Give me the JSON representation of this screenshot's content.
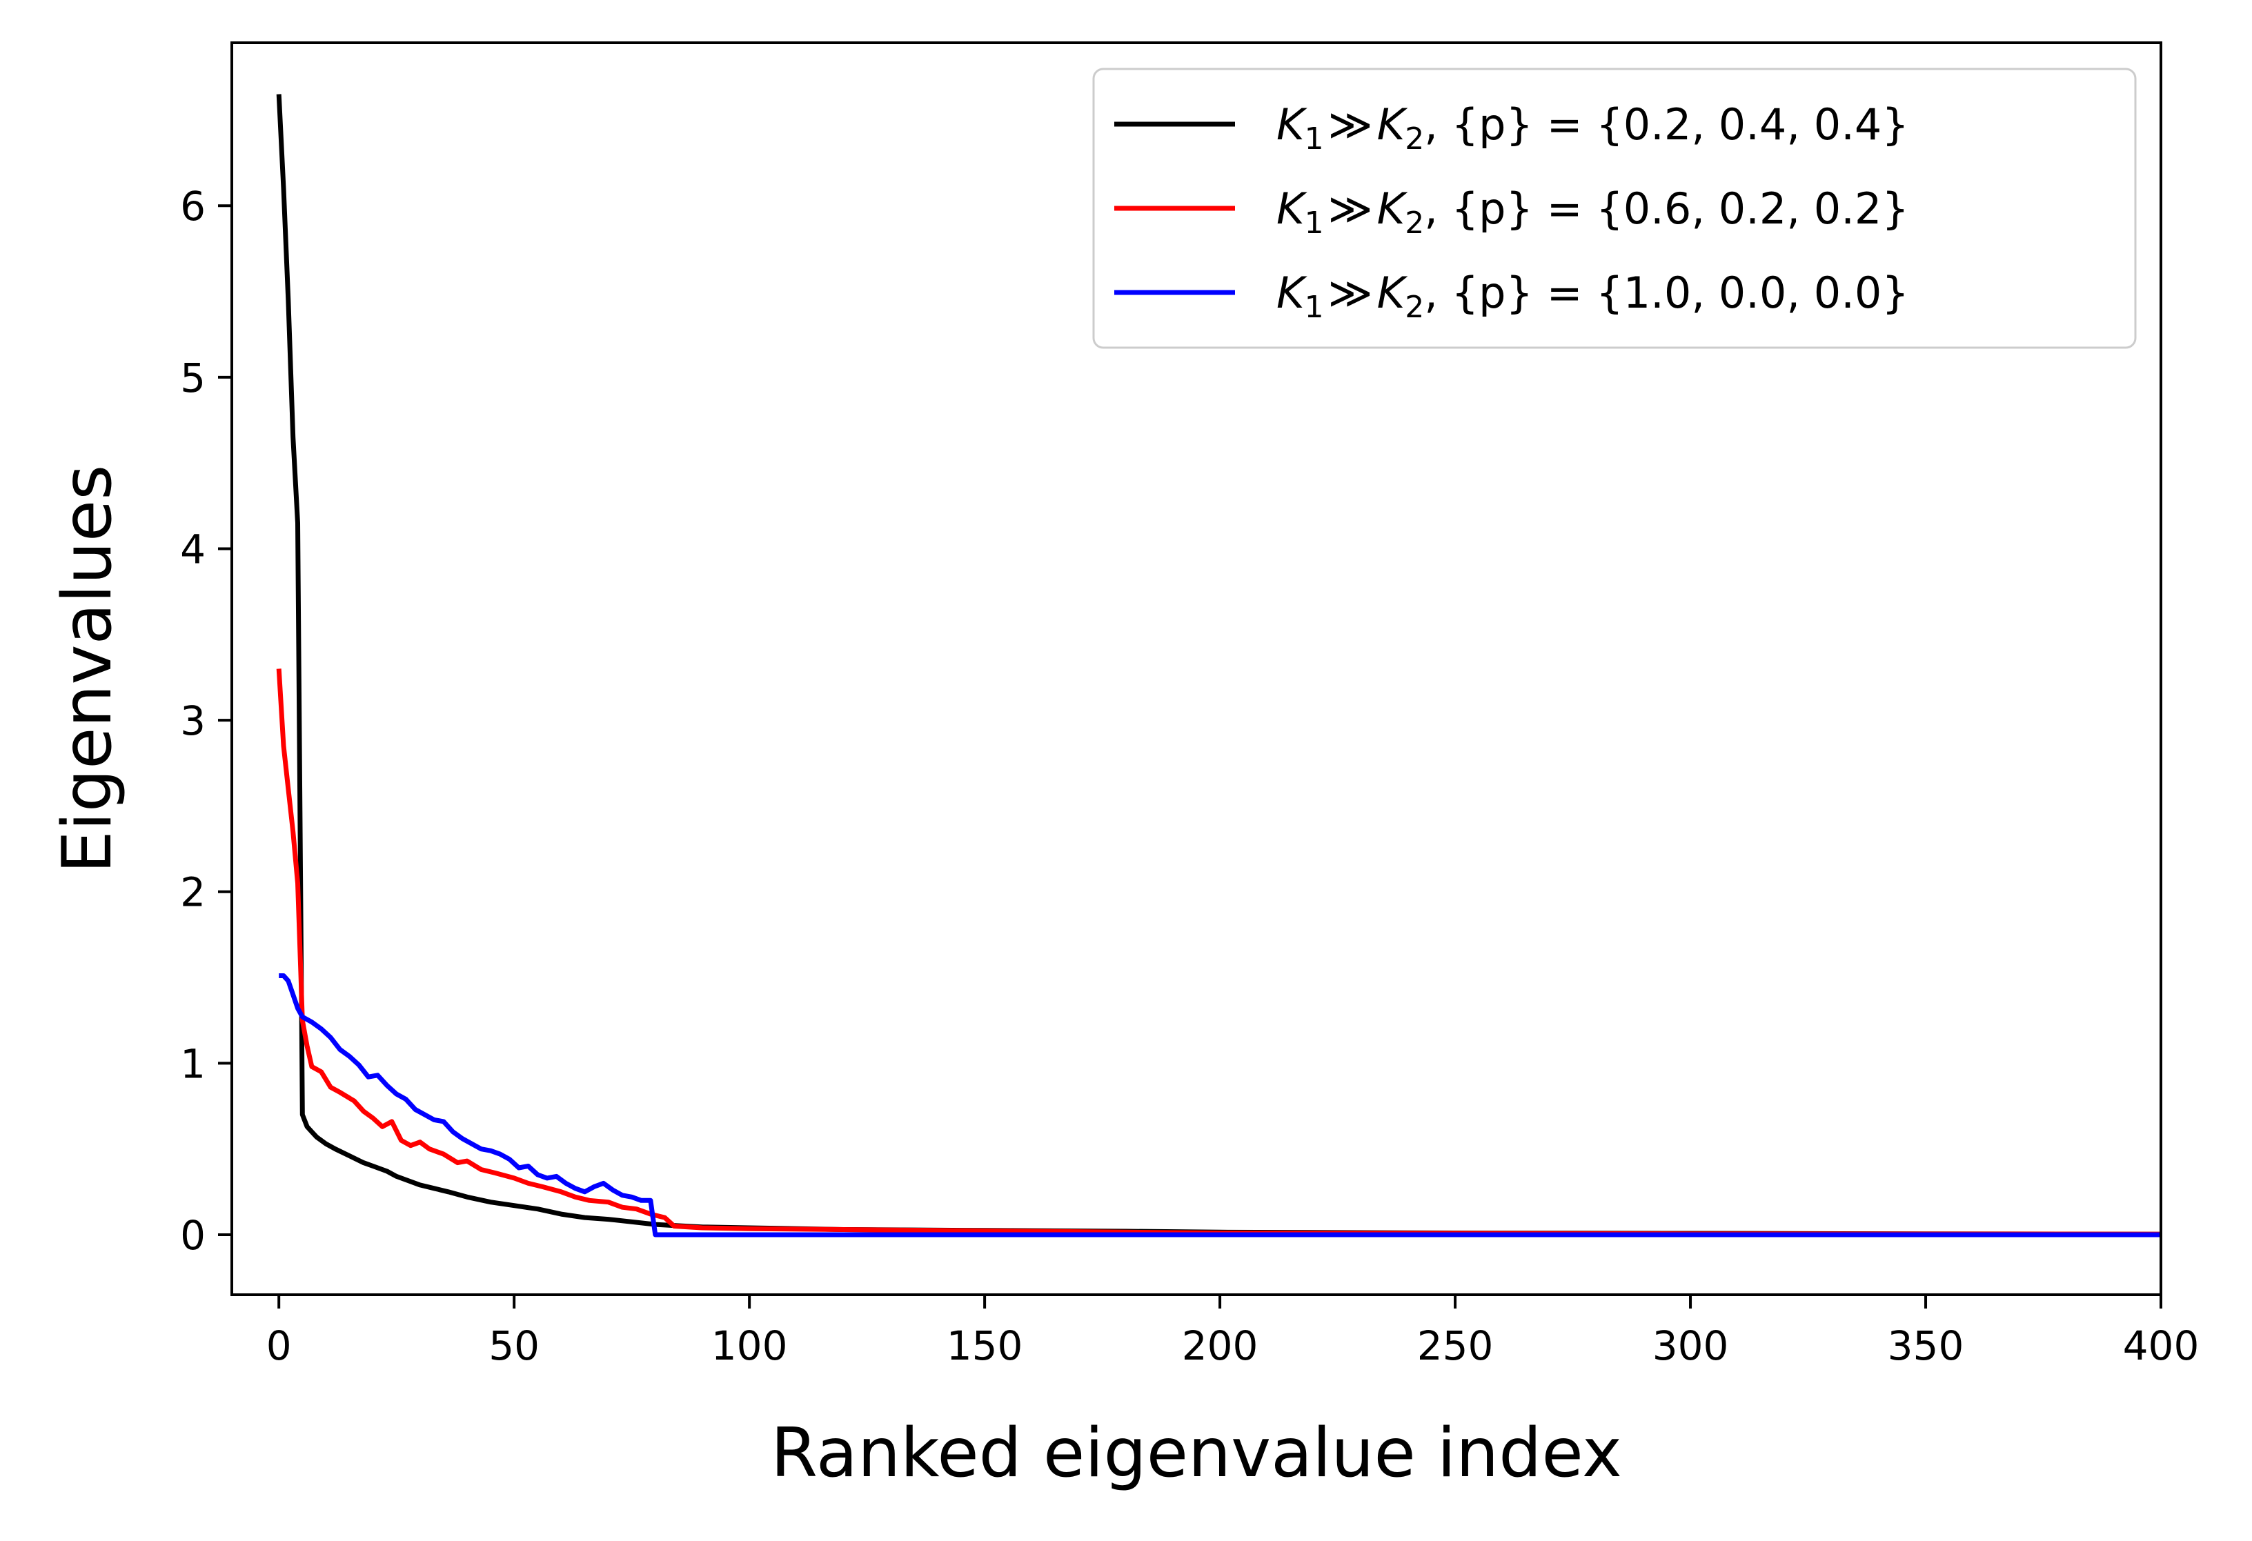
{
  "chart_data": {
    "type": "line",
    "xlabel": "Ranked eigenvalue index",
    "ylabel": "Eigenvalues",
    "xlim": [
      -10,
      400
    ],
    "ylim": [
      -0.35,
      6.95
    ],
    "xticks": [
      0,
      50,
      100,
      150,
      200,
      250,
      300,
      350,
      400
    ],
    "yticks": [
      0,
      1,
      2,
      3,
      4,
      5,
      6
    ],
    "legend_position": "top-right",
    "grid": false,
    "series": [
      {
        "name": "K1 ≫ K2, {p} = {0.2, 0.4, 0.4}",
        "legend": {
          "k1": "K",
          "s1": "1",
          "rel": "≫",
          "k2": "K",
          "s2": "2",
          "rest": ", {p} = {0.2, 0.4, 0.4}"
        },
        "color": "#000000",
        "points": [
          [
            0,
            6.65
          ],
          [
            1,
            6.1
          ],
          [
            2,
            5.45
          ],
          [
            3,
            4.65
          ],
          [
            4,
            4.15
          ],
          [
            5,
            0.7
          ],
          [
            6,
            0.63
          ],
          [
            7,
            0.6
          ],
          [
            8,
            0.57
          ],
          [
            10,
            0.53
          ],
          [
            12,
            0.5
          ],
          [
            15,
            0.46
          ],
          [
            18,
            0.42
          ],
          [
            20,
            0.4
          ],
          [
            23,
            0.37
          ],
          [
            25,
            0.34
          ],
          [
            28,
            0.31
          ],
          [
            30,
            0.29
          ],
          [
            33,
            0.27
          ],
          [
            36,
            0.25
          ],
          [
            40,
            0.22
          ],
          [
            45,
            0.19
          ],
          [
            50,
            0.17
          ],
          [
            55,
            0.15
          ],
          [
            60,
            0.12
          ],
          [
            65,
            0.1
          ],
          [
            70,
            0.09
          ],
          [
            75,
            0.075
          ],
          [
            80,
            0.06
          ],
          [
            83,
            0.055
          ],
          [
            90,
            0.045
          ],
          [
            100,
            0.04
          ],
          [
            120,
            0.03
          ],
          [
            150,
            0.025
          ],
          [
            180,
            0.02
          ],
          [
            200,
            0.015
          ],
          [
            250,
            0.01
          ],
          [
            300,
            0.008
          ],
          [
            350,
            0.005
          ],
          [
            400,
            0.003
          ]
        ]
      },
      {
        "name": "K1 ≫ K2, {p} = {0.6, 0.2, 0.2}",
        "legend": {
          "k1": "K",
          "s1": "1",
          "rel": "≫",
          "k2": "K",
          "s2": "2",
          "rest": ", {p} = {0.6, 0.2, 0.2}"
        },
        "color": "#ff0000",
        "points": [
          [
            0,
            3.3
          ],
          [
            1,
            2.85
          ],
          [
            2,
            2.6
          ],
          [
            3,
            2.35
          ],
          [
            4,
            2.05
          ],
          [
            5,
            1.25
          ],
          [
            6,
            1.1
          ],
          [
            7,
            0.98
          ],
          [
            9,
            0.95
          ],
          [
            11,
            0.86
          ],
          [
            13,
            0.83
          ],
          [
            16,
            0.78
          ],
          [
            18,
            0.72
          ],
          [
            20,
            0.68
          ],
          [
            22,
            0.63
          ],
          [
            24,
            0.66
          ],
          [
            26,
            0.55
          ],
          [
            28,
            0.52
          ],
          [
            30,
            0.54
          ],
          [
            32,
            0.5
          ],
          [
            35,
            0.47
          ],
          [
            38,
            0.42
          ],
          [
            40,
            0.43
          ],
          [
            43,
            0.38
          ],
          [
            46,
            0.36
          ],
          [
            50,
            0.33
          ],
          [
            53,
            0.3
          ],
          [
            56,
            0.28
          ],
          [
            60,
            0.25
          ],
          [
            63,
            0.22
          ],
          [
            66,
            0.2
          ],
          [
            70,
            0.19
          ],
          [
            73,
            0.16
          ],
          [
            76,
            0.15
          ],
          [
            79,
            0.12
          ],
          [
            82,
            0.1
          ],
          [
            84,
            0.05
          ],
          [
            90,
            0.04
          ],
          [
            100,
            0.035
          ],
          [
            120,
            0.03
          ],
          [
            140,
            0.025
          ],
          [
            160,
            0.02
          ],
          [
            180,
            0.015
          ],
          [
            200,
            0.01
          ],
          [
            250,
            0.008
          ],
          [
            300,
            0.005
          ],
          [
            400,
            0.003
          ]
        ]
      },
      {
        "name": "K1 ≫ K2, {p} = {1.0, 0.0, 0.0}",
        "legend": {
          "k1": "K",
          "s1": "1",
          "rel": "≫",
          "k2": "K",
          "s2": "2",
          "rest": ", {p} = {1.0, 0.0, 0.0}"
        },
        "color": "#0000ff",
        "points": [
          [
            0,
            1.51
          ],
          [
            1,
            1.51
          ],
          [
            2,
            1.48
          ],
          [
            3,
            1.4
          ],
          [
            4,
            1.32
          ],
          [
            5,
            1.27
          ],
          [
            7,
            1.24
          ],
          [
            9,
            1.2
          ],
          [
            11,
            1.15
          ],
          [
            13,
            1.08
          ],
          [
            15,
            1.04
          ],
          [
            17,
            0.99
          ],
          [
            19,
            0.92
          ],
          [
            21,
            0.93
          ],
          [
            23,
            0.87
          ],
          [
            25,
            0.82
          ],
          [
            27,
            0.79
          ],
          [
            29,
            0.73
          ],
          [
            31,
            0.7
          ],
          [
            33,
            0.67
          ],
          [
            35,
            0.66
          ],
          [
            37,
            0.6
          ],
          [
            39,
            0.56
          ],
          [
            41,
            0.53
          ],
          [
            43,
            0.5
          ],
          [
            45,
            0.49
          ],
          [
            47,
            0.47
          ],
          [
            49,
            0.44
          ],
          [
            51,
            0.39
          ],
          [
            53,
            0.4
          ],
          [
            55,
            0.35
          ],
          [
            57,
            0.33
          ],
          [
            59,
            0.34
          ],
          [
            61,
            0.3
          ],
          [
            63,
            0.27
          ],
          [
            65,
            0.25
          ],
          [
            67,
            0.28
          ],
          [
            69,
            0.3
          ],
          [
            71,
            0.26
          ],
          [
            73,
            0.23
          ],
          [
            75,
            0.22
          ],
          [
            77,
            0.2
          ],
          [
            79,
            0.2
          ],
          [
            80,
            0.0
          ],
          [
            100,
            0.0
          ],
          [
            200,
            0.0
          ],
          [
            300,
            0.0
          ],
          [
            400,
            0.0
          ]
        ]
      }
    ]
  }
}
